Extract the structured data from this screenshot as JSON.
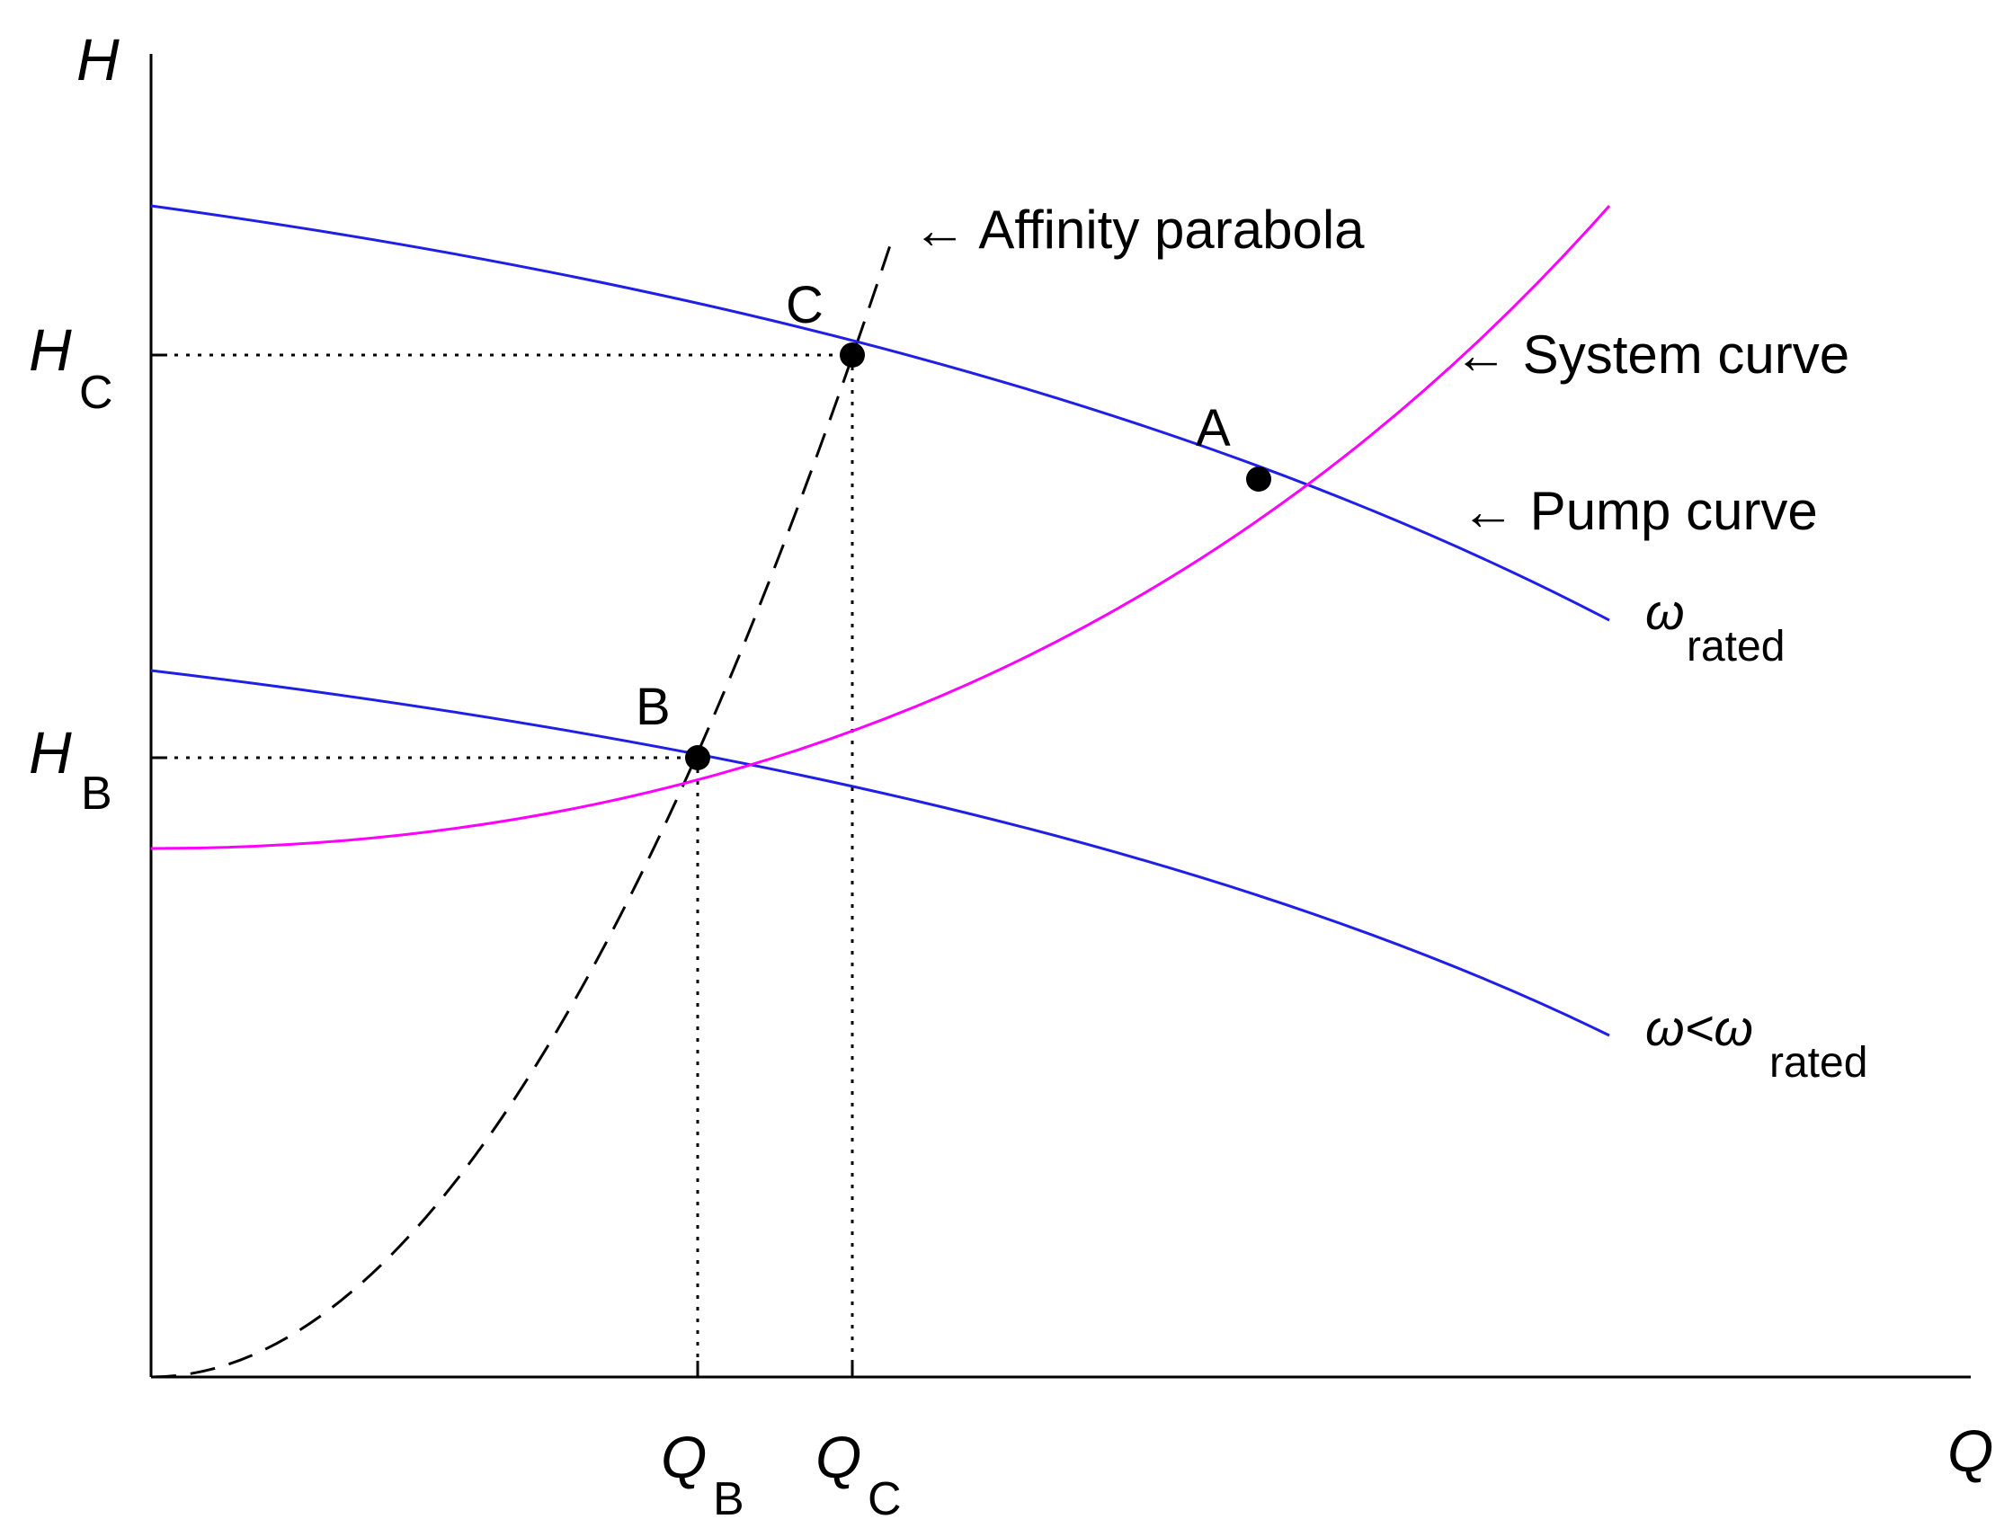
{
  "axes": {
    "y_title": "H",
    "x_title": "Q"
  },
  "ticks": {
    "hc": {
      "main": "H",
      "sub": "C"
    },
    "hb": {
      "main": "H",
      "sub": "B"
    },
    "qb": {
      "main": "Q",
      "sub": "B"
    },
    "qc": {
      "main": "Q",
      "sub": "C"
    }
  },
  "points": {
    "a": "A",
    "b": "B",
    "c": "C"
  },
  "labels": {
    "affinity": "← Affinity parabola",
    "system": "← System curve",
    "pump": "← Pump curve",
    "rated": {
      "main": "ω",
      "sub": "rated"
    },
    "reduced": {
      "main": "ω<ω",
      "sub": "rated"
    }
  },
  "colors": {
    "pump_curve": "#1f1fe6",
    "system_curve": "#ff00ff",
    "affinity_parabola": "#000000",
    "guides": "#000000"
  }
}
